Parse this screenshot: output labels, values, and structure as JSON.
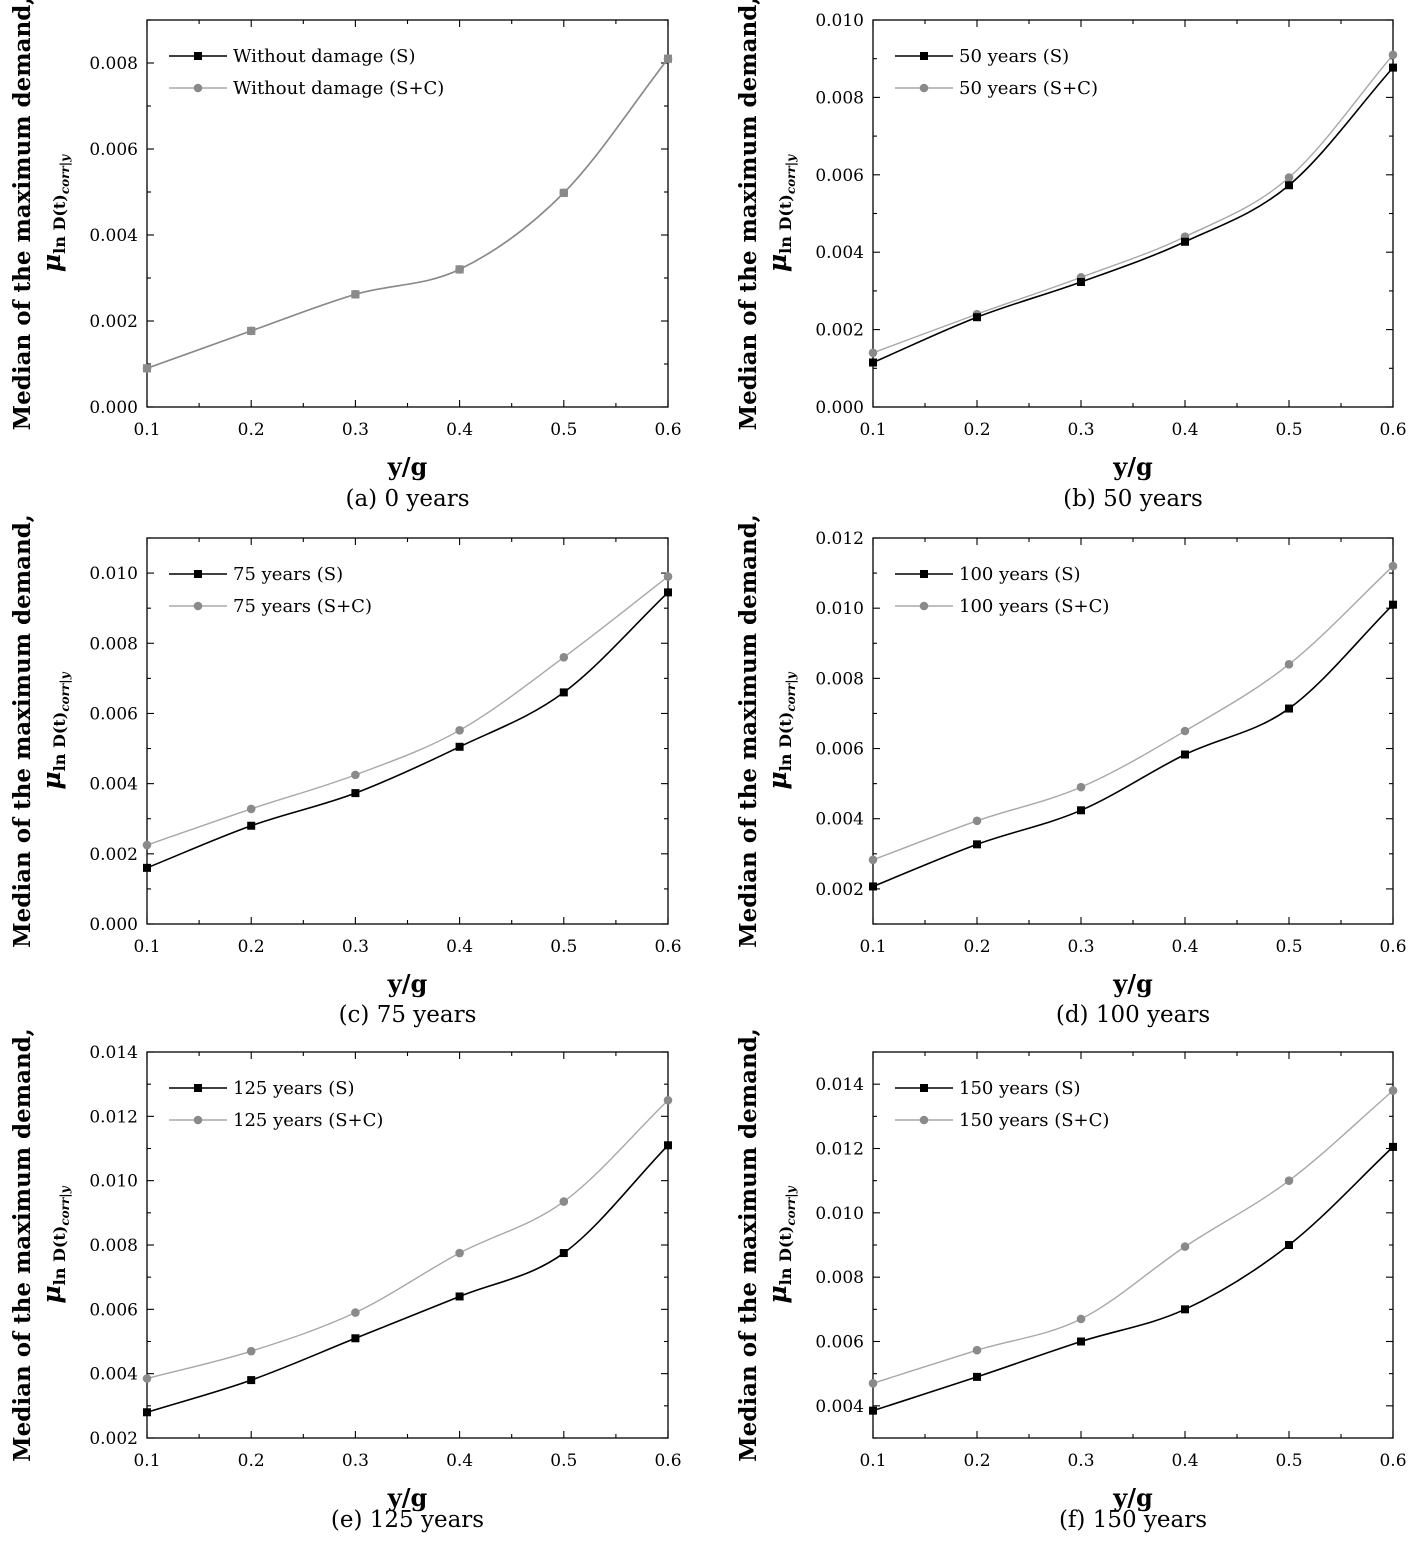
{
  "colors": {
    "s": "#000000",
    "sc": "#8a8a8a",
    "sc_line": "#a8a8a8"
  },
  "y_axis_label_line1": "Median of the maximum demand,",
  "y_axis_label_symbol": "μ",
  "y_axis_label_sub": "ln D(t)",
  "y_axis_label_subsub": "corr|y",
  "chart_data": [
    {
      "type": "line",
      "caption": "(a) 0 years",
      "xlabel": "y/g",
      "ylabel": "Median of the maximum demand, μ ln D(t) corr|y",
      "x": [
        0.1,
        0.2,
        0.3,
        0.4,
        0.5,
        0.6
      ],
      "xlim": [
        0.1,
        0.6
      ],
      "xticks": [
        "0.1",
        "0.2",
        "0.3",
        "0.4",
        "0.5",
        "0.6"
      ],
      "ylim": [
        0.0,
        0.009
      ],
      "yticks": [
        "0.000",
        "0.002",
        "0.004",
        "0.006",
        "0.008"
      ],
      "ytick_values": [
        0.0,
        0.002,
        0.004,
        0.006,
        0.008
      ],
      "legend": "top-left",
      "series": [
        {
          "name": "Without damage (S)",
          "values": [
            0.0009,
            0.00177,
            0.00262,
            0.0032,
            0.00498,
            0.0081
          ]
        },
        {
          "name": "Without damage (S+C)",
          "values": [
            0.0009,
            0.00177,
            0.00262,
            0.0032,
            0.00498,
            0.0081
          ]
        }
      ]
    },
    {
      "type": "line",
      "caption": "(b) 50 years",
      "xlabel": "y/g",
      "ylabel": "Median of the maximum demand, μ ln D(t) corr|y",
      "x": [
        0.1,
        0.2,
        0.3,
        0.4,
        0.5,
        0.6
      ],
      "xlim": [
        0.1,
        0.6
      ],
      "xticks": [
        "0.1",
        "0.2",
        "0.3",
        "0.4",
        "0.5",
        "0.6"
      ],
      "ylim": [
        0.0,
        0.01
      ],
      "yticks": [
        "0.000",
        "0.002",
        "0.004",
        "0.006",
        "0.008",
        "0.010"
      ],
      "ytick_values": [
        0.0,
        0.002,
        0.004,
        0.006,
        0.008,
        0.01
      ],
      "legend": "top-left",
      "series": [
        {
          "name": "50 years (S)",
          "values": [
            0.00115,
            0.00232,
            0.00323,
            0.00427,
            0.00573,
            0.00877
          ]
        },
        {
          "name": "50 years (S+C)",
          "values": [
            0.0014,
            0.0024,
            0.00335,
            0.0044,
            0.00593,
            0.0091
          ]
        }
      ]
    },
    {
      "type": "line",
      "caption": "(c) 75 years",
      "xlabel": "y/g",
      "ylabel": "Median of the maximum demand, μ ln D(t) corr|y",
      "x": [
        0.1,
        0.2,
        0.3,
        0.4,
        0.5,
        0.6
      ],
      "xlim": [
        0.1,
        0.6
      ],
      "xticks": [
        "0.1",
        "0.2",
        "0.3",
        "0.4",
        "0.5",
        "0.6"
      ],
      "ylim": [
        0.0,
        0.011
      ],
      "yticks": [
        "0.000",
        "0.002",
        "0.004",
        "0.006",
        "0.008",
        "0.010"
      ],
      "ytick_values": [
        0.0,
        0.002,
        0.004,
        0.006,
        0.008,
        0.01
      ],
      "legend": "top-left",
      "series": [
        {
          "name": "75 years (S)",
          "values": [
            0.0016,
            0.0028,
            0.00373,
            0.00505,
            0.0066,
            0.00945
          ]
        },
        {
          "name": "75 years (S+C)",
          "values": [
            0.00225,
            0.00328,
            0.00425,
            0.00552,
            0.0076,
            0.0099
          ]
        }
      ]
    },
    {
      "type": "line",
      "caption": "(d) 100 years",
      "xlabel": "y/g",
      "ylabel": "Median of the maximum demand, μ ln D(t) corr|y",
      "x": [
        0.1,
        0.2,
        0.3,
        0.4,
        0.5,
        0.6
      ],
      "xlim": [
        0.1,
        0.6
      ],
      "xticks": [
        "0.1",
        "0.2",
        "0.3",
        "0.4",
        "0.5",
        "0.6"
      ],
      "ylim": [
        0.001,
        0.012
      ],
      "yticks": [
        "0.002",
        "0.004",
        "0.006",
        "0.008",
        "0.010",
        "0.012"
      ],
      "ytick_values": [
        0.002,
        0.004,
        0.006,
        0.008,
        0.01,
        0.012
      ],
      "legend": "top-left",
      "series": [
        {
          "name": "100 years (S)",
          "values": [
            0.00207,
            0.00327,
            0.00424,
            0.00583,
            0.00714,
            0.0101
          ]
        },
        {
          "name": "100 years (S+C)",
          "values": [
            0.00283,
            0.00394,
            0.0049,
            0.0065,
            0.0084,
            0.0112
          ]
        }
      ]
    },
    {
      "type": "line",
      "caption": "(e) 125 years",
      "xlabel": "y/g",
      "ylabel": "Median of the maximum demand, μ ln D(t) corr|y",
      "x": [
        0.1,
        0.2,
        0.3,
        0.4,
        0.5,
        0.6
      ],
      "xlim": [
        0.1,
        0.6
      ],
      "xticks": [
        "0.1",
        "0.2",
        "0.3",
        "0.4",
        "0.5",
        "0.6"
      ],
      "ylim": [
        0.002,
        0.014
      ],
      "yticks": [
        "0.002",
        "0.004",
        "0.006",
        "0.008",
        "0.010",
        "0.012",
        "0.014"
      ],
      "ytick_values": [
        0.002,
        0.004,
        0.006,
        0.008,
        0.01,
        0.012,
        0.014
      ],
      "legend": "top-left",
      "series": [
        {
          "name": "125 years (S)",
          "values": [
            0.0028,
            0.0038,
            0.0051,
            0.0064,
            0.00775,
            0.0111
          ]
        },
        {
          "name": "125 years (S+C)",
          "values": [
            0.00385,
            0.0047,
            0.0059,
            0.00775,
            0.00935,
            0.0125
          ]
        }
      ]
    },
    {
      "type": "line",
      "caption": "(f) 150 years",
      "xlabel": "y/g",
      "ylabel": "Median of the maximum demand, μ ln D(t) corr|y",
      "x": [
        0.1,
        0.2,
        0.3,
        0.4,
        0.5,
        0.6
      ],
      "xlim": [
        0.1,
        0.6
      ],
      "xticks": [
        "0.1",
        "0.2",
        "0.3",
        "0.4",
        "0.5",
        "0.6"
      ],
      "ylim": [
        0.003,
        0.015
      ],
      "yticks": [
        "0.004",
        "0.006",
        "0.008",
        "0.010",
        "0.012",
        "0.014"
      ],
      "ytick_values": [
        0.004,
        0.006,
        0.008,
        0.01,
        0.012,
        0.014
      ],
      "legend": "top-left",
      "series": [
        {
          "name": "150 years (S)",
          "values": [
            0.00385,
            0.0049,
            0.006,
            0.007,
            0.009,
            0.01205
          ]
        },
        {
          "name": "150 years (S+C)",
          "values": [
            0.0047,
            0.00573,
            0.0067,
            0.00895,
            0.011,
            0.0138
          ]
        }
      ]
    }
  ]
}
